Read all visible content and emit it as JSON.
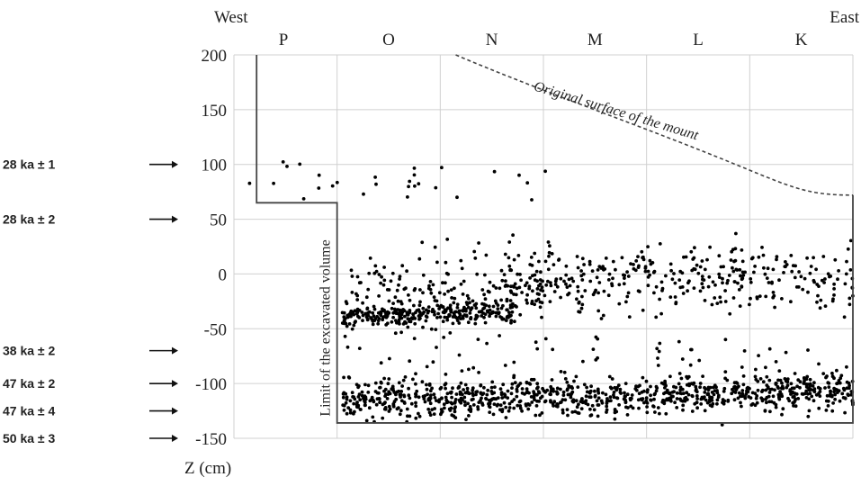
{
  "chart_data": {
    "type": "scatter",
    "title": "",
    "xlabel": "",
    "ylabel": "Z (cm)",
    "ylim": [
      -150,
      200
    ],
    "y_ticks": [
      "200",
      "150",
      "100",
      "50",
      "0",
      "-50",
      "-100",
      "-150"
    ],
    "grid": true,
    "direction_labels": {
      "left": "West",
      "right": "East"
    },
    "columns": [
      "P",
      "O",
      "N",
      "M",
      "L",
      "K"
    ],
    "annotations": {
      "surface": "Original surface of the mount",
      "excavation": "Limit of the excavated volume"
    },
    "dates": [
      {
        "label": "28 ka ± 1",
        "z": 100
      },
      {
        "label": "28 ka ± 2",
        "z": 50
      },
      {
        "label": "38 ka ± 2",
        "z": -70
      },
      {
        "label": "47 ka ± 2",
        "z": -100
      },
      {
        "label": "47 ka ± 4",
        "z": -125
      },
      {
        "label": "50 ka ± 3",
        "z": -150
      }
    ],
    "scatter_groups": [
      {
        "name": "upper-isolated",
        "x_range": [
          0.1,
          3.1
        ],
        "z_mean": 88,
        "z_sd": 10,
        "count": 28
      },
      {
        "name": "upper-dense-west",
        "x_range": [
          1.05,
          2.7
        ],
        "z_mean": -40,
        "z_sd": 5,
        "count": 280
      },
      {
        "name": "upper-scatter-west",
        "x_range": [
          1.05,
          3.0
        ],
        "z_mean": -15,
        "z_sd": 17,
        "count": 170
      },
      {
        "name": "upper-scatter-east",
        "x_range": [
          2.6,
          6.0
        ],
        "z_mean": -5,
        "z_sd": 16,
        "count": 360
      },
      {
        "name": "lower-level",
        "x_range": [
          1.05,
          6.0
        ],
        "z_mean": -112,
        "z_sd": 9,
        "count": 950
      },
      {
        "name": "intermediate",
        "x_range": [
          1.05,
          5.6
        ],
        "z_mean": -75,
        "z_sd": 12,
        "count": 45
      }
    ]
  }
}
